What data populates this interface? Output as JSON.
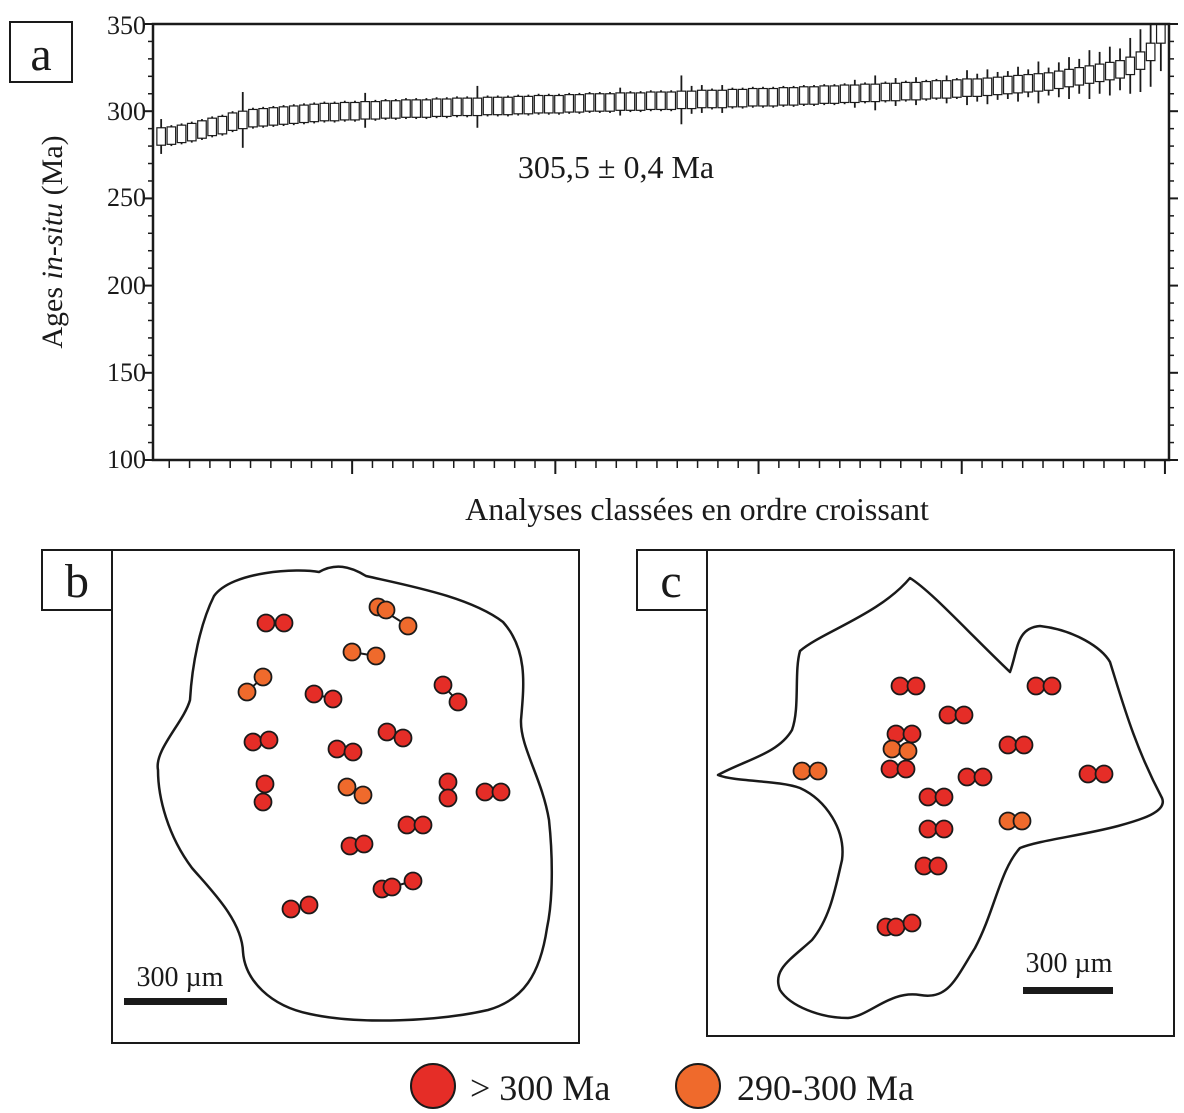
{
  "chart_data": {
    "type": "error-bar-ranked",
    "panel_label": "a",
    "ylabel_prefix": "Ages ",
    "ylabel_italic": "in-situ",
    "ylabel_suffix": " (Ma)",
    "xlabel": "Analyses classées en ordre croissant",
    "annotation": "305,5 ± 0,4 Ma",
    "ylim": [
      100,
      350
    ],
    "y_ticks": [
      "350",
      "300",
      "250",
      "200",
      "150",
      "100"
    ],
    "n_analyses": 99,
    "colors": {
      "box": "#ffffff",
      "line": "#1a1a1a"
    },
    "ages": [
      285.5,
      286.0,
      287.0,
      288.0,
      289.5,
      291.0,
      292.0,
      294.0,
      295.0,
      296.0,
      296.5,
      297.0,
      297.5,
      298.0,
      298.5,
      299.0,
      299.5,
      299.5,
      300.0,
      300.0,
      300.5,
      300.5,
      301.0,
      301.0,
      301.5,
      301.5,
      301.5,
      302.0,
      302.0,
      302.5,
      302.5,
      302.5,
      303.0,
      303.0,
      303.0,
      303.5,
      303.5,
      304.0,
      304.0,
      304.0,
      304.5,
      304.5,
      305.0,
      305.0,
      305.0,
      305.5,
      305.5,
      305.5,
      306.0,
      306.0,
      306.0,
      306.5,
      306.5,
      307.0,
      307.0,
      307.0,
      307.5,
      307.5,
      308.0,
      308.0,
      308.0,
      308.5,
      308.5,
      309.0,
      309.0,
      309.5,
      309.5,
      310.0,
      310.0,
      310.5,
      310.5,
      311.0,
      311.0,
      311.5,
      311.5,
      312.0,
      312.5,
      312.5,
      313.0,
      313.5,
      313.5,
      314.0,
      314.5,
      315.0,
      315.5,
      316.0,
      316.5,
      317.0,
      318.0,
      319.0,
      320.0,
      321.0,
      322.0,
      323.0,
      324.0,
      326.0,
      329.0,
      334.0,
      345.0
    ],
    "box_half": [
      5.0,
      5.0,
      5.0,
      5.0,
      5.0,
      5.0,
      5.0,
      5.0,
      5.0,
      5.0,
      5.0,
      5.0,
      5.0,
      5.0,
      5.0,
      5.0,
      5.0,
      5.0,
      5.0,
      5.0,
      5.0,
      5.0,
      5.0,
      5.0,
      5.0,
      5.0,
      5.0,
      5.0,
      5.0,
      5.0,
      5.0,
      5.0,
      5.0,
      5.0,
      5.0,
      5.0,
      5.0,
      5.0,
      5.0,
      5.0,
      5.0,
      5.0,
      5.0,
      5.0,
      5.0,
      5.0,
      5.0,
      5.0,
      5.0,
      5.0,
      5.0,
      5.0,
      5.0,
      5.0,
      5.0,
      5.0,
      5.0,
      5.0,
      5.0,
      5.0,
      5.0,
      5.0,
      5.0,
      5.0,
      5.0,
      5.0,
      5.0,
      5.0,
      5.0,
      5.0,
      5.0,
      5.0,
      5.0,
      5.0,
      5.0,
      5.0,
      5.0,
      5.0,
      5.0,
      5.0,
      5.0,
      5.0,
      5.0,
      5.0,
      5.0,
      5.0,
      5.0,
      5.0,
      5.0,
      5.0,
      5.0,
      5.0,
      5.0,
      5.0,
      5.0,
      5.0,
      5.0,
      5.0,
      6.0
    ],
    "bar_half": [
      10,
      6,
      6,
      6,
      6,
      6,
      6,
      6,
      16,
      6,
      6,
      6,
      6,
      6,
      6,
      6,
      6,
      6,
      6,
      6,
      10,
      6,
      6,
      6,
      6,
      6,
      6,
      6,
      6,
      6,
      6,
      12,
      6,
      6,
      6,
      6,
      6,
      6,
      6,
      6,
      6,
      6,
      6,
      6,
      6,
      8,
      6,
      6,
      6,
      6,
      6,
      14,
      8,
      8,
      6,
      8,
      6,
      6,
      6,
      6,
      6,
      6,
      6,
      6,
      6,
      6,
      6,
      6,
      8,
      6,
      10,
      6,
      8,
      6,
      8,
      6,
      6,
      8,
      6,
      10,
      8,
      10,
      8,
      8,
      10,
      8,
      12,
      8,
      10,
      12,
      10,
      14,
      12,
      14,
      12,
      16,
      18,
      20,
      22
    ]
  },
  "panel_b": {
    "label": "b",
    "scale_bar": "300 µm",
    "spots": [
      {
        "cat": "old",
        "x": 266,
        "y": 623
      },
      {
        "cat": "old",
        "x": 284,
        "y": 623
      },
      {
        "cat": "young",
        "x": 378,
        "y": 607
      },
      {
        "cat": "young",
        "x": 386,
        "y": 610
      },
      {
        "cat": "young",
        "x": 408,
        "y": 626
      },
      {
        "cat": "young",
        "x": 352,
        "y": 652
      },
      {
        "cat": "young",
        "x": 376,
        "y": 656
      },
      {
        "cat": "young",
        "x": 247,
        "y": 692
      },
      {
        "cat": "young",
        "x": 263,
        "y": 677
      },
      {
        "cat": "old",
        "x": 314,
        "y": 694
      },
      {
        "cat": "old",
        "x": 333,
        "y": 699
      },
      {
        "cat": "old",
        "x": 443,
        "y": 685
      },
      {
        "cat": "old",
        "x": 458,
        "y": 702
      },
      {
        "cat": "old",
        "x": 253,
        "y": 742
      },
      {
        "cat": "old",
        "x": 269,
        "y": 740
      },
      {
        "cat": "old",
        "x": 337,
        "y": 749
      },
      {
        "cat": "old",
        "x": 353,
        "y": 752
      },
      {
        "cat": "old",
        "x": 387,
        "y": 732
      },
      {
        "cat": "old",
        "x": 403,
        "y": 738
      },
      {
        "cat": "old",
        "x": 265,
        "y": 784
      },
      {
        "cat": "old",
        "x": 263,
        "y": 802
      },
      {
        "cat": "young",
        "x": 347,
        "y": 787
      },
      {
        "cat": "young",
        "x": 363,
        "y": 795
      },
      {
        "cat": "old",
        "x": 448,
        "y": 782
      },
      {
        "cat": "old",
        "x": 448,
        "y": 798
      },
      {
        "cat": "old",
        "x": 485,
        "y": 792
      },
      {
        "cat": "old",
        "x": 501,
        "y": 792
      },
      {
        "cat": "old",
        "x": 407,
        "y": 825
      },
      {
        "cat": "old",
        "x": 423,
        "y": 825
      },
      {
        "cat": "old",
        "x": 350,
        "y": 846
      },
      {
        "cat": "old",
        "x": 364,
        "y": 844
      },
      {
        "cat": "old",
        "x": 382,
        "y": 889
      },
      {
        "cat": "old",
        "x": 392,
        "y": 887
      },
      {
        "cat": "old",
        "x": 413,
        "y": 881
      },
      {
        "cat": "old",
        "x": 291,
        "y": 909
      },
      {
        "cat": "old",
        "x": 309,
        "y": 905
      }
    ],
    "links": [
      [
        2,
        4
      ],
      [
        5,
        6
      ],
      [
        7,
        8
      ],
      [
        9,
        10
      ],
      [
        11,
        12
      ],
      [
        19,
        20
      ],
      [
        21,
        22
      ],
      [
        23,
        24
      ],
      [
        32,
        33
      ],
      [
        34,
        35
      ]
    ]
  },
  "panel_c": {
    "label": "c",
    "scale_bar": "300 µm",
    "spots": [
      {
        "cat": "old",
        "x": 900,
        "y": 686
      },
      {
        "cat": "old",
        "x": 916,
        "y": 686
      },
      {
        "cat": "old",
        "x": 1036,
        "y": 686
      },
      {
        "cat": "old",
        "x": 1052,
        "y": 686
      },
      {
        "cat": "old",
        "x": 948,
        "y": 715
      },
      {
        "cat": "old",
        "x": 964,
        "y": 715
      },
      {
        "cat": "old",
        "x": 896,
        "y": 734
      },
      {
        "cat": "old",
        "x": 912,
        "y": 734
      },
      {
        "cat": "young",
        "x": 892,
        "y": 749
      },
      {
        "cat": "young",
        "x": 908,
        "y": 751
      },
      {
        "cat": "old",
        "x": 1008,
        "y": 745
      },
      {
        "cat": "old",
        "x": 1024,
        "y": 745
      },
      {
        "cat": "young",
        "x": 802,
        "y": 771
      },
      {
        "cat": "young",
        "x": 818,
        "y": 771
      },
      {
        "cat": "old",
        "x": 890,
        "y": 769
      },
      {
        "cat": "old",
        "x": 906,
        "y": 769
      },
      {
        "cat": "old",
        "x": 967,
        "y": 777
      },
      {
        "cat": "old",
        "x": 983,
        "y": 777
      },
      {
        "cat": "old",
        "x": 1088,
        "y": 774
      },
      {
        "cat": "old",
        "x": 1104,
        "y": 774
      },
      {
        "cat": "old",
        "x": 928,
        "y": 797
      },
      {
        "cat": "old",
        "x": 944,
        "y": 797
      },
      {
        "cat": "old",
        "x": 928,
        "y": 829
      },
      {
        "cat": "old",
        "x": 944,
        "y": 829
      },
      {
        "cat": "young",
        "x": 1008,
        "y": 821
      },
      {
        "cat": "young",
        "x": 1022,
        "y": 821
      },
      {
        "cat": "old",
        "x": 924,
        "y": 866
      },
      {
        "cat": "old",
        "x": 938,
        "y": 866
      },
      {
        "cat": "old",
        "x": 886,
        "y": 927
      },
      {
        "cat": "old",
        "x": 896,
        "y": 927
      },
      {
        "cat": "old",
        "x": 912,
        "y": 923
      }
    ],
    "links": []
  },
  "legend": [
    {
      "label": "> 300 Ma",
      "color": "#e52d27"
    },
    {
      "label": "290-300 Ma",
      "color": "#ef6a2c"
    }
  ],
  "colors": {
    "old": "#e52d27",
    "young": "#ef6a2c",
    "stroke": "#1a1a1a"
  }
}
